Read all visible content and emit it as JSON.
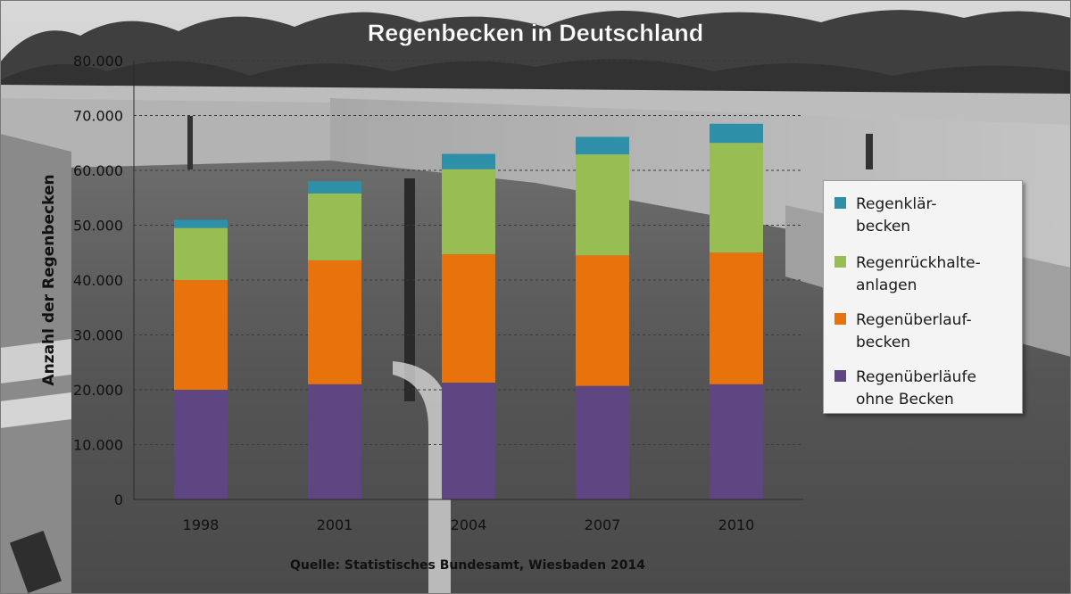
{
  "chart_data": {
    "type": "bar",
    "stacked": true,
    "title": "Regenbecken in Deutschland",
    "ylabel": "Anzahl der Regenbecken",
    "xlabel": "",
    "source": "Quelle: Statistisches Bundesamt, Wiesbaden 2014",
    "categories": [
      "1998",
      "2001",
      "2004",
      "2007",
      "2010"
    ],
    "ylim": [
      0,
      80000
    ],
    "yticks": [
      0,
      10000,
      20000,
      30000,
      40000,
      50000,
      60000,
      70000,
      80000
    ],
    "ytick_labels": [
      "0",
      "10.000",
      "20.000",
      "30.000",
      "40.000",
      "50.000",
      "60.000",
      "70.000",
      "80.000"
    ],
    "grid": true,
    "legend_position": "right",
    "series": [
      {
        "name": "Regenüberläufe ohne Becken",
        "color": "#5e4682",
        "values": [
          20000,
          21000,
          21300,
          20700,
          21000
        ]
      },
      {
        "name": "Regenüberlaufbecken",
        "color": "#e8720c",
        "values": [
          20000,
          22600,
          23400,
          23800,
          24000
        ]
      },
      {
        "name": "Regenrückhalteanlagen",
        "color": "#98bd52",
        "values": [
          9500,
          12200,
          15500,
          18400,
          20000
        ]
      },
      {
        "name": "Regenklärbecken",
        "color": "#2e8fa8",
        "values": [
          1500,
          2200,
          2800,
          3200,
          3500
        ]
      }
    ]
  },
  "legend": {
    "items": [
      {
        "label": "Regenklär-\nbecken",
        "color": "#2e8fa8"
      },
      {
        "label": "Regenrückhalte-\nanlagen",
        "color": "#98bd52"
      },
      {
        "label": "Regenüberlauf-\nbecken",
        "color": "#e8720c"
      },
      {
        "label": "Regenüberläufe\nohne Becken",
        "color": "#5e4682"
      }
    ]
  }
}
